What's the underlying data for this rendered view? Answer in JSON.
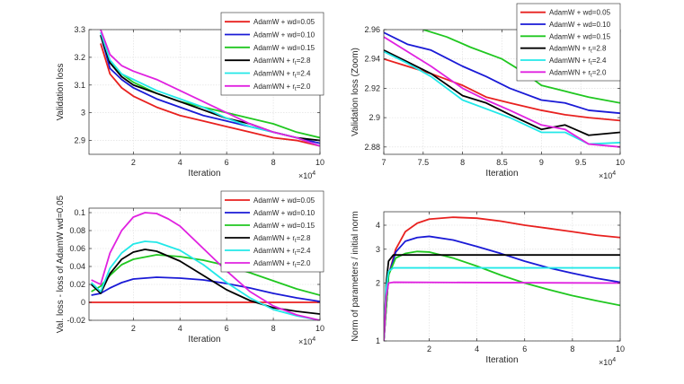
{
  "chart_data": [
    {
      "type": "line",
      "id": "p1",
      "xlabel": "Iteration",
      "ylabel": "Validation loss",
      "x_exponent_label": "×10",
      "x_exponent": "4",
      "xlim": [
        0.1,
        10
      ],
      "ylim": [
        2.85,
        3.3
      ],
      "xticks": [
        2,
        4,
        6,
        8,
        10
      ],
      "yticks": [
        2.9,
        3,
        3.1,
        3.2,
        3.3
      ],
      "ytick_labels": [
        "2.9",
        "3",
        "3.1",
        "3.2",
        "3.3"
      ],
      "legend_position": "top-right",
      "series": [
        {
          "name": "AdamW + wd=0.05",
          "color": "#e8211f",
          "x": [
            0.6,
            1.0,
            1.5,
            2,
            3,
            4,
            5,
            6,
            7,
            8,
            9,
            10
          ],
          "y": [
            3.25,
            3.14,
            3.09,
            3.06,
            3.02,
            2.99,
            2.97,
            2.95,
            2.93,
            2.91,
            2.9,
            2.88
          ]
        },
        {
          "name": "AdamW + wd=0.10",
          "color": "#1a1ad6",
          "x": [
            0.6,
            1.0,
            1.5,
            2,
            3,
            4,
            5,
            6,
            7,
            8,
            9,
            10
          ],
          "y": [
            3.28,
            3.16,
            3.12,
            3.09,
            3.05,
            3.02,
            2.99,
            2.97,
            2.95,
            2.93,
            2.91,
            2.89
          ]
        },
        {
          "name": "AdamW + wd=0.15",
          "color": "#20c720",
          "x": [
            0.6,
            1.0,
            1.5,
            2,
            3,
            4,
            5,
            6,
            7,
            8,
            9,
            10
          ],
          "y": [
            3.28,
            3.18,
            3.14,
            3.11,
            3.07,
            3.04,
            3.02,
            3.0,
            2.98,
            2.96,
            2.93,
            2.91
          ]
        },
        {
          "name": "AdamWN + r",
          "sub": "t",
          "suffix": "=2.8",
          "color": "#000000",
          "x": [
            0.6,
            1.0,
            1.5,
            2,
            3,
            4,
            5,
            6,
            7,
            8,
            9,
            10
          ],
          "y": [
            3.28,
            3.18,
            3.13,
            3.1,
            3.07,
            3.04,
            3.01,
            2.98,
            2.96,
            2.93,
            2.91,
            2.9
          ]
        },
        {
          "name": "AdamWN + r",
          "sub": "t",
          "suffix": "=2.4",
          "color": "#22e8e8",
          "x": [
            0.6,
            1.0,
            1.5,
            2,
            3,
            4,
            5,
            6,
            7,
            8,
            9,
            10
          ],
          "y": [
            3.29,
            3.19,
            3.14,
            3.12,
            3.08,
            3.05,
            3.02,
            2.98,
            2.95,
            2.93,
            2.91,
            2.88
          ]
        },
        {
          "name": "AdamWN + r",
          "sub": "t",
          "suffix": "=2.0",
          "color": "#e022e0",
          "x": [
            0.6,
            1.0,
            1.5,
            2,
            3,
            4,
            5,
            6,
            7,
            8,
            9,
            10
          ],
          "y": [
            3.3,
            3.21,
            3.17,
            3.15,
            3.12,
            3.08,
            3.04,
            3.0,
            2.96,
            2.93,
            2.91,
            2.88
          ]
        }
      ]
    },
    {
      "type": "line",
      "id": "p2",
      "xlabel": "Iteration",
      "ylabel": "Validation loss (Zoom)",
      "x_exponent_label": "×10",
      "x_exponent": "4",
      "xlim": [
        7,
        10
      ],
      "ylim": [
        2.875,
        2.96
      ],
      "xticks": [
        7,
        7.5,
        8,
        8.5,
        9,
        9.5,
        10
      ],
      "xtick_labels": [
        "7",
        "7.5",
        "8",
        "8.5",
        "9",
        "9.5",
        "10"
      ],
      "yticks": [
        2.88,
        2.9,
        2.92,
        2.94,
        2.96
      ],
      "ytick_labels": [
        "2.88",
        "2.9",
        "2.92",
        "2.94",
        "2.96"
      ],
      "legend_position": "top-right",
      "series": [
        {
          "name": "AdamW + wd=0.05",
          "color": "#e8211f",
          "x": [
            7,
            7.3,
            7.6,
            8,
            8.3,
            8.6,
            9,
            9.3,
            9.6,
            10
          ],
          "y": [
            2.94,
            2.935,
            2.93,
            2.922,
            2.914,
            2.91,
            2.905,
            2.902,
            2.9,
            2.898
          ]
        },
        {
          "name": "AdamW + wd=0.10",
          "color": "#1a1ad6",
          "x": [
            7,
            7.3,
            7.6,
            8,
            8.3,
            8.6,
            9,
            9.3,
            9.6,
            10
          ],
          "y": [
            2.958,
            2.95,
            2.946,
            2.935,
            2.928,
            2.92,
            2.912,
            2.91,
            2.905,
            2.903
          ]
        },
        {
          "name": "AdamW + wd=0.15",
          "color": "#20c720",
          "x": [
            7.5,
            7.8,
            8.1,
            8.5,
            8.8,
            9,
            9.3,
            9.6,
            10
          ],
          "y": [
            2.96,
            2.955,
            2.948,
            2.94,
            2.93,
            2.922,
            2.918,
            2.914,
            2.91
          ]
        },
        {
          "name": "AdamWN + r",
          "sub": "t",
          "suffix": "=2.8",
          "color": "#000000",
          "x": [
            7,
            7.3,
            7.6,
            8,
            8.3,
            8.6,
            9,
            9.3,
            9.6,
            10
          ],
          "y": [
            2.946,
            2.938,
            2.93,
            2.915,
            2.91,
            2.902,
            2.892,
            2.895,
            2.888,
            2.89
          ]
        },
        {
          "name": "AdamWN + r",
          "sub": "t",
          "suffix": "=2.4",
          "color": "#22e8e8",
          "x": [
            7,
            7.3,
            7.6,
            8,
            8.3,
            8.6,
            9,
            9.3,
            9.6,
            10
          ],
          "y": [
            2.945,
            2.937,
            2.928,
            2.912,
            2.906,
            2.9,
            2.89,
            2.89,
            2.882,
            2.883
          ]
        },
        {
          "name": "AdamWN + r",
          "sub": "t",
          "suffix": "=2.0",
          "color": "#e022e0",
          "x": [
            7,
            7.3,
            7.6,
            8,
            8.3,
            8.6,
            9,
            9.3,
            9.6,
            10
          ],
          "y": [
            2.955,
            2.945,
            2.935,
            2.92,
            2.912,
            2.905,
            2.895,
            2.892,
            2.882,
            2.88
          ]
        }
      ]
    },
    {
      "type": "line",
      "id": "p3",
      "xlabel": "Iteration",
      "ylabel": "Val. loss - loss of AdamW wd=0.05",
      "x_exponent_label": "×10",
      "x_exponent": "4",
      "xlim": [
        0.1,
        10
      ],
      "ylim": [
        -0.02,
        0.105
      ],
      "xticks": [
        2,
        4,
        6,
        8,
        10
      ],
      "yticks": [
        -0.02,
        0,
        0.02,
        0.04,
        0.06,
        0.08,
        0.1
      ],
      "ytick_labels": [
        "-0.02",
        "0",
        "0.02",
        "0.04",
        "0.06",
        "0.08",
        "0.1"
      ],
      "legend_position": "top-right",
      "series": [
        {
          "name": "AdamW + wd=0.05",
          "color": "#e8211f",
          "x": [
            0.1,
            10
          ],
          "y": [
            0,
            0
          ]
        },
        {
          "name": "AdamW + wd=0.10",
          "color": "#1a1ad6",
          "x": [
            0.2,
            0.6,
            1.0,
            1.5,
            2,
            3,
            4,
            5,
            6,
            7,
            8,
            9,
            10
          ],
          "y": [
            0.008,
            0.01,
            0.016,
            0.022,
            0.026,
            0.028,
            0.027,
            0.025,
            0.021,
            0.016,
            0.01,
            0.005,
            0.001
          ]
        },
        {
          "name": "AdamW + wd=0.15",
          "color": "#20c720",
          "x": [
            0.2,
            0.6,
            1.0,
            1.5,
            2,
            3,
            4,
            5,
            6,
            7,
            8,
            9,
            10
          ],
          "y": [
            0.012,
            0.018,
            0.03,
            0.042,
            0.048,
            0.053,
            0.051,
            0.047,
            0.041,
            0.033,
            0.024,
            0.015,
            0.008
          ]
        },
        {
          "name": "AdamWN + r",
          "sub": "t",
          "suffix": "=2.8",
          "color": "#000000",
          "x": [
            0.2,
            0.6,
            1.0,
            1.5,
            2,
            2.5,
            3,
            4,
            5,
            6,
            7,
            8,
            9,
            10
          ],
          "y": [
            0.02,
            0.01,
            0.032,
            0.048,
            0.056,
            0.059,
            0.057,
            0.046,
            0.03,
            0.014,
            0.002,
            -0.006,
            -0.01,
            -0.013
          ]
        },
        {
          "name": "AdamWN + r",
          "sub": "t",
          "suffix": "=2.4",
          "color": "#22e8e8",
          "x": [
            0.2,
            0.6,
            1.0,
            1.5,
            2,
            2.5,
            3,
            4,
            5,
            6,
            7,
            8,
            9,
            10
          ],
          "y": [
            0.022,
            0.012,
            0.038,
            0.055,
            0.065,
            0.068,
            0.067,
            0.058,
            0.042,
            0.022,
            0.005,
            -0.008,
            -0.015,
            -0.02
          ]
        },
        {
          "name": "AdamWN + r",
          "sub": "t",
          "suffix": "=2.0",
          "color": "#e022e0",
          "x": [
            0.2,
            0.6,
            1.0,
            1.5,
            2,
            2.5,
            3,
            3.5,
            4,
            5,
            6,
            7,
            8,
            9,
            10
          ],
          "y": [
            0.025,
            0.02,
            0.055,
            0.08,
            0.095,
            0.1,
            0.099,
            0.093,
            0.085,
            0.06,
            0.035,
            0.012,
            -0.004,
            -0.014,
            -0.02
          ]
        }
      ]
    },
    {
      "type": "line",
      "id": "p4",
      "xlabel": "Iteration",
      "ylabel": "Norm of parameters / initial norm",
      "x_exponent_label": "×10",
      "x_exponent": "4",
      "yscale": "log",
      "xlim": [
        0.1,
        10
      ],
      "ylim": [
        1,
        4.7
      ],
      "xticks": [
        2,
        4,
        6,
        8,
        10
      ],
      "yticks": [
        1,
        2,
        3,
        4
      ],
      "ytick_labels": [
        "1",
        "2",
        "3",
        "4"
      ],
      "series": [
        {
          "name": "AdamW + wd=0.05",
          "color": "#e8211f",
          "x": [
            0.1,
            0.3,
            0.6,
            1.0,
            1.5,
            2,
            3,
            4,
            5,
            6,
            7,
            8,
            9,
            10
          ],
          "y": [
            1.0,
            2.2,
            3.0,
            3.7,
            4.1,
            4.3,
            4.4,
            4.35,
            4.2,
            4.0,
            3.85,
            3.7,
            3.55,
            3.45
          ]
        },
        {
          "name": "AdamW + wd=0.10",
          "color": "#1a1ad6",
          "x": [
            0.1,
            0.3,
            0.6,
            1.0,
            1.5,
            2,
            3,
            4,
            5,
            6,
            7,
            8,
            9,
            10
          ],
          "y": [
            1.0,
            2.2,
            2.9,
            3.3,
            3.45,
            3.5,
            3.35,
            3.1,
            2.85,
            2.6,
            2.4,
            2.25,
            2.12,
            2.02
          ]
        },
        {
          "name": "AdamW + wd=0.15",
          "color": "#20c720",
          "x": [
            0.1,
            0.3,
            0.6,
            1.0,
            1.5,
            2,
            3,
            4,
            5,
            6,
            7,
            8,
            9,
            10
          ],
          "y": [
            1.0,
            2.2,
            2.7,
            2.85,
            2.92,
            2.9,
            2.7,
            2.45,
            2.2,
            2.0,
            1.85,
            1.72,
            1.62,
            1.53
          ]
        },
        {
          "name": "AdamWN + r",
          "sub": "t",
          "suffix": "=2.8",
          "color": "#000000",
          "x": [
            0.1,
            0.2,
            0.3,
            0.5,
            10
          ],
          "y": [
            1.0,
            2.0,
            2.6,
            2.8,
            2.8
          ]
        },
        {
          "name": "AdamWN + r",
          "sub": "t",
          "suffix": "=2.4",
          "color": "#22e8e8",
          "x": [
            0.1,
            0.2,
            0.3,
            0.5,
            10
          ],
          "y": [
            1.0,
            1.9,
            2.3,
            2.4,
            2.4
          ]
        },
        {
          "name": "AdamWN + r",
          "sub": "t",
          "suffix": "=2.0",
          "color": "#e022e0",
          "x": [
            0.1,
            0.2,
            0.3,
            0.5,
            10
          ],
          "y": [
            1.0,
            1.7,
            2.0,
            2.02,
            2.0
          ]
        }
      ]
    }
  ]
}
